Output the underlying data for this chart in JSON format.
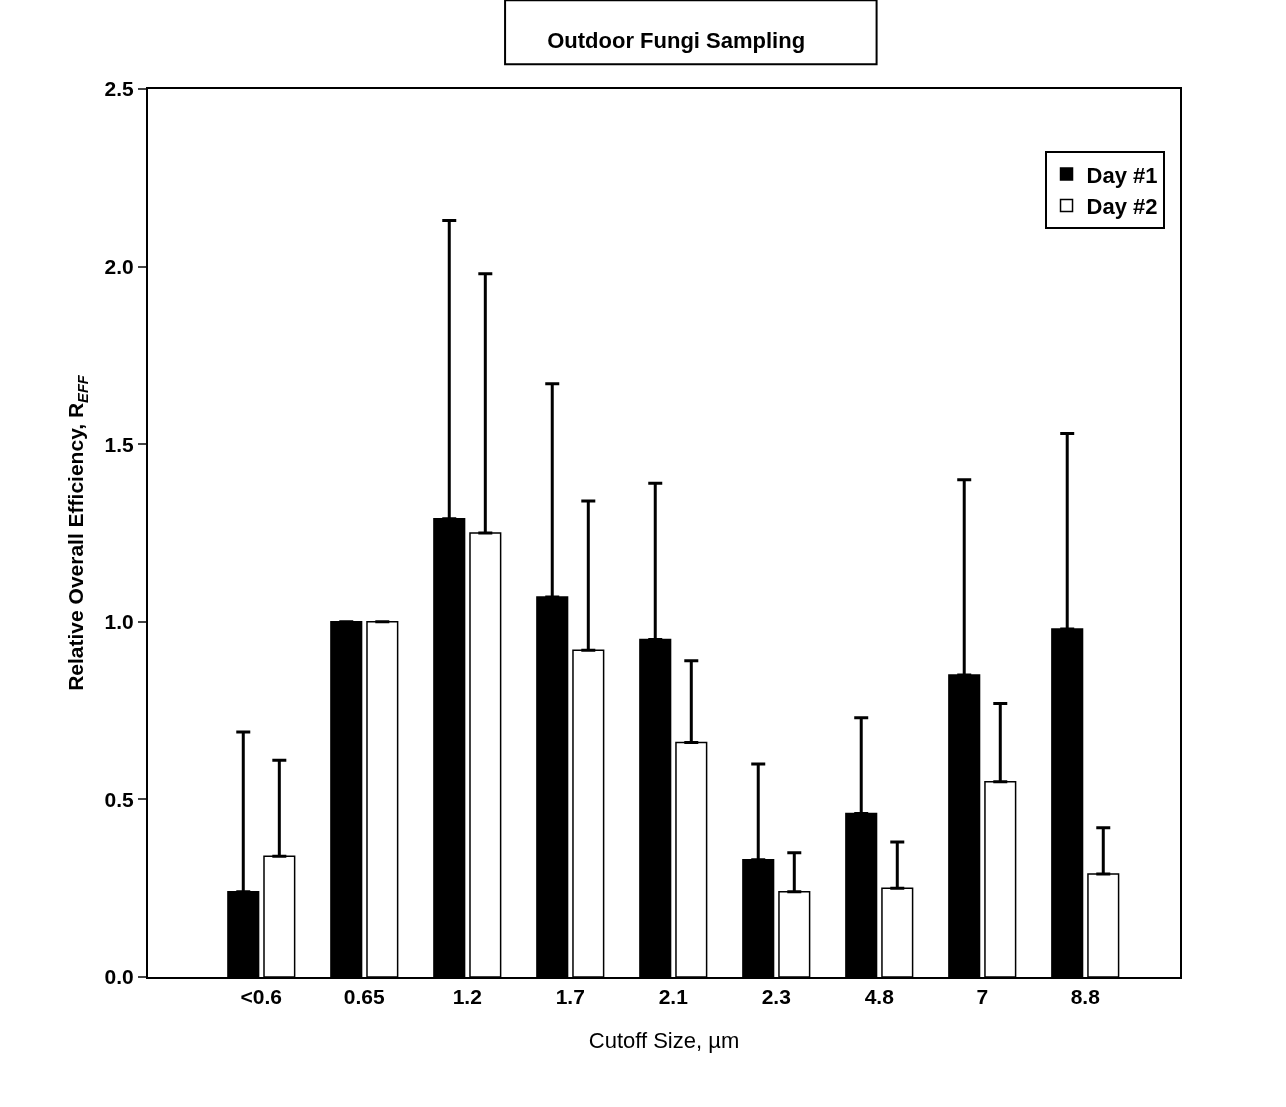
{
  "chart_data": {
    "type": "bar",
    "title": "Outdoor Fungi Sampling",
    "xlabel": "Cutoff Size, µm",
    "ylabel": "Relative Overall Efficiency, R$_{EFF}$",
    "categories": [
      "<0.6",
      "0.65",
      "1.2",
      "1.7",
      "2.1",
      "2.3",
      "4.8",
      "7",
      "8.8"
    ],
    "series": [
      {
        "name": "Day #1",
        "color": "#000000",
        "values": [
          0.24,
          1.0,
          1.29,
          1.07,
          0.95,
          0.33,
          0.46,
          0.85,
          0.98
        ],
        "errors": [
          [
            0.24,
            0.69
          ],
          null,
          [
            1.29,
            2.13
          ],
          [
            1.07,
            1.67
          ],
          [
            0.95,
            1.39
          ],
          [
            0.33,
            0.6
          ],
          [
            0.46,
            0.73
          ],
          [
            0.85,
            1.4
          ],
          [
            0.98,
            1.53
          ]
        ]
      },
      {
        "name": "Day #2",
        "color": "#ffffff",
        "values": [
          0.34,
          1.0,
          1.25,
          0.92,
          0.66,
          0.24,
          0.25,
          0.55,
          0.29
        ],
        "errors": [
          [
            0.34,
            0.61
          ],
          null,
          [
            1.25,
            1.98
          ],
          [
            0.92,
            1.34
          ],
          [
            0.66,
            0.89
          ],
          [
            0.24,
            0.35
          ],
          [
            0.25,
            0.38
          ],
          [
            0.55,
            0.77
          ],
          [
            0.29,
            0.42
          ]
        ]
      }
    ],
    "ylim": [
      0,
      2.5
    ],
    "yticks": [
      {
        "value": 0,
        "label": "0.0"
      },
      {
        "value": 0.5,
        "label": "0.5"
      },
      {
        "value": 1,
        "label": "1.0"
      },
      {
        "value": 1.5,
        "label": "1.5"
      },
      {
        "value": 2,
        "label": "2.0"
      },
      {
        "value": 2.5,
        "label": "2.5"
      }
    ],
    "legend": "top right"
  }
}
